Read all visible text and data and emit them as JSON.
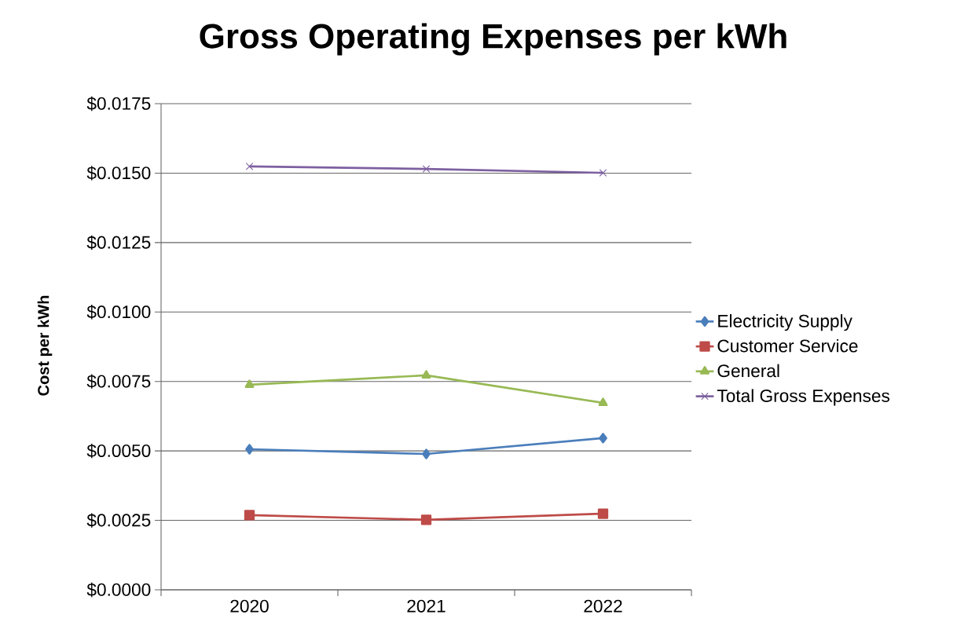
{
  "chart_data": {
    "type": "line",
    "title": "Gross Operating Expenses per kWh",
    "ylabel": "Cost per kWh",
    "categories": [
      "2020",
      "2021",
      "2022"
    ],
    "series": [
      {
        "name": "Electricity Supply",
        "color": "#4a7ebb",
        "marker": "diamond",
        "values": [
          0.00506,
          0.00489,
          0.00546
        ]
      },
      {
        "name": "Customer Service",
        "color": "#be4b48",
        "marker": "square",
        "values": [
          0.00269,
          0.00252,
          0.00274
        ]
      },
      {
        "name": "General",
        "color": "#98b954",
        "marker": "triangle",
        "values": [
          0.00738,
          0.00772,
          0.00673
        ]
      },
      {
        "name": "Total Gross Expenses",
        "color": "#7d60a0",
        "marker": "cross",
        "values": [
          0.01524,
          0.01515,
          0.01501
        ]
      }
    ],
    "ylim": [
      0,
      0.0175
    ],
    "yticks": [
      {
        "value": 0,
        "label": "$0.0000"
      },
      {
        "value": 0.0025,
        "label": "$0.0025"
      },
      {
        "value": 0.005,
        "label": "$0.0050"
      },
      {
        "value": 0.0075,
        "label": "$0.0075"
      },
      {
        "value": 0.01,
        "label": "$0.0100"
      },
      {
        "value": 0.0125,
        "label": "$0.0125"
      },
      {
        "value": 0.015,
        "label": "$0.0150"
      },
      {
        "value": 0.0175,
        "label": "$0.0175"
      }
    ],
    "grid": "y",
    "legend": "right",
    "line_style": "solid"
  }
}
